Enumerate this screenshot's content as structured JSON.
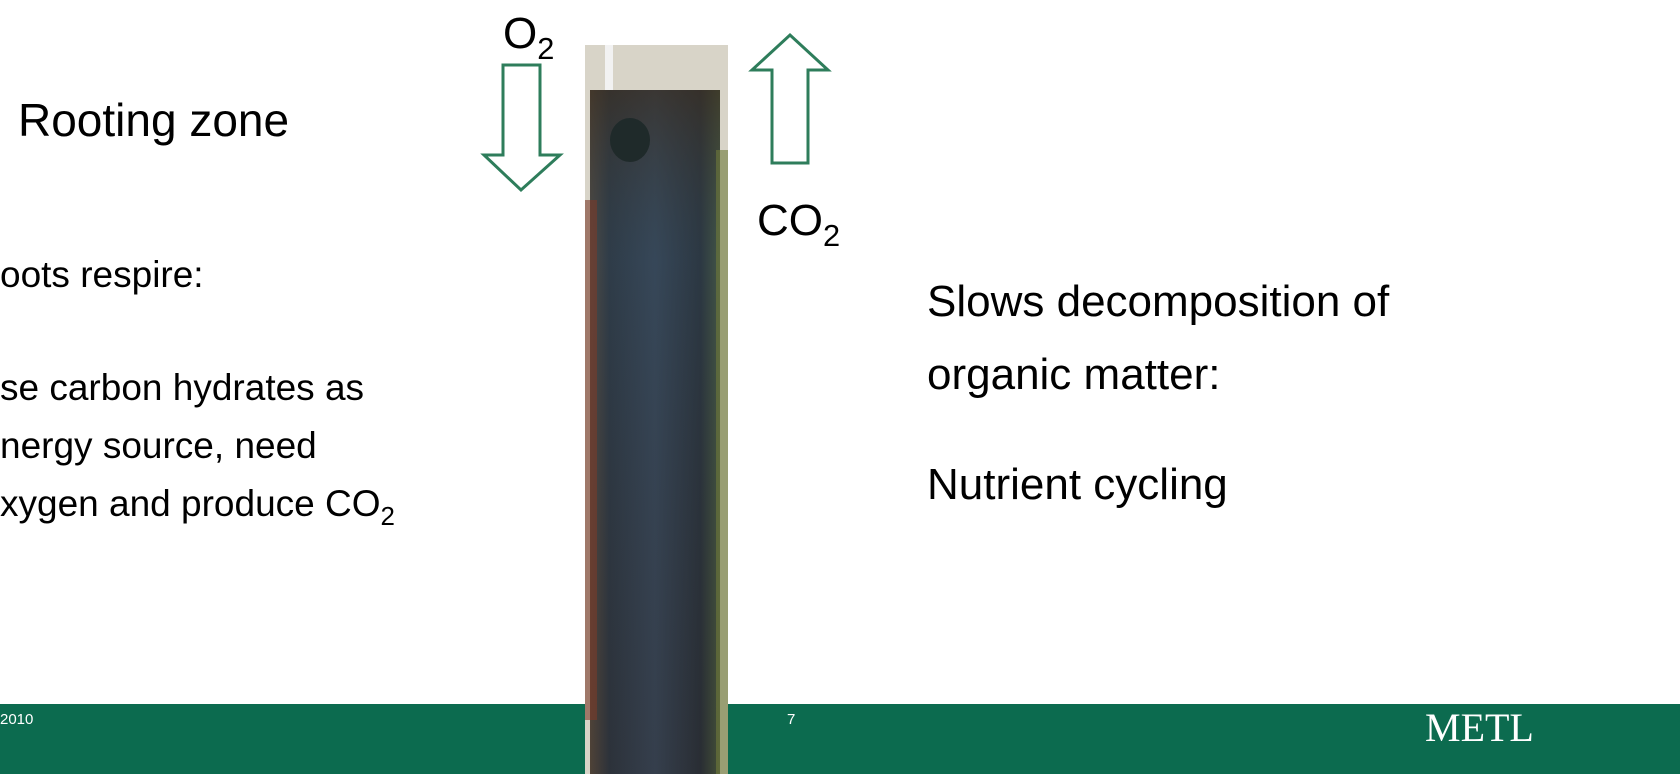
{
  "title": "Rooting zone",
  "o2": {
    "base": "O",
    "sub": "2"
  },
  "co2": {
    "base": "CO",
    "sub": "2"
  },
  "left_text": {
    "heading": "oots respire:",
    "lines": [
      "se carbon hydrates as",
      "nergy source, need",
      "xygen and produce CO"
    ],
    "last_sub": "2"
  },
  "right_text": {
    "lines": [
      "Slows decomposition of",
      "organic matter:"
    ],
    "second": "Nutrient cycling"
  },
  "footer": {
    "date": "2010",
    "page": "7",
    "logo": "METL"
  }
}
